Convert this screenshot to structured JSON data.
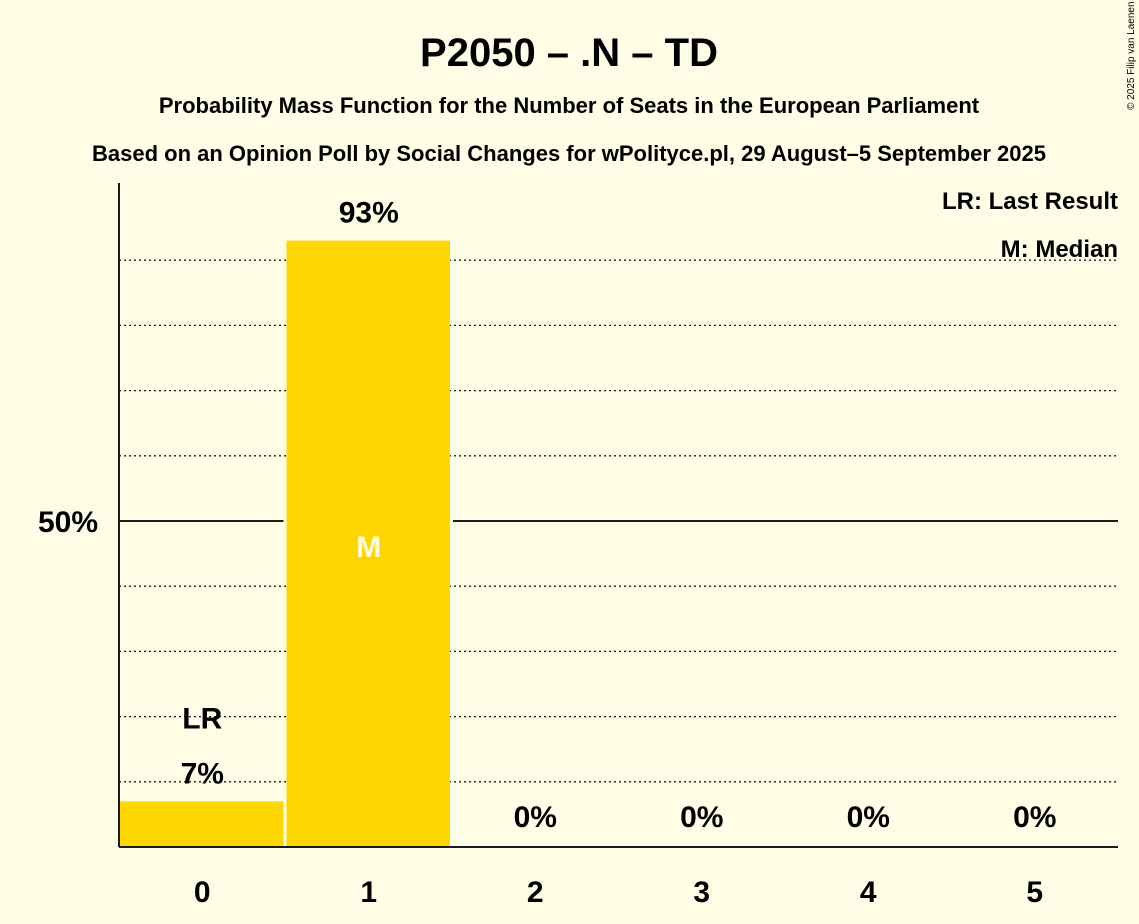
{
  "chart_data": {
    "type": "bar",
    "title": "P2050 – .N – TD",
    "subtitle1": "Probability Mass Function for the Number of Seats in the European Parliament",
    "subtitle2": "Based on an Opinion Poll by Social Changes for wPolityce.pl, 29 August–5 September 2025",
    "copyright": "© 2025 Filip van Laenen",
    "categories": [
      "0",
      "1",
      "2",
      "3",
      "4",
      "5"
    ],
    "values": [
      7,
      93,
      0,
      0,
      0,
      0
    ],
    "value_labels": [
      "7%",
      "93%",
      "0%",
      "0%",
      "0%",
      "0%"
    ],
    "ylim": [
      0,
      100
    ],
    "ytick_label": "50%",
    "ytick_value": 50,
    "grid": true,
    "last_result_index": 0,
    "last_result_label": "LR",
    "median_index": 1,
    "median_label": "M",
    "legend": [
      "LR: Last Result",
      "M: Median"
    ],
    "legend_position": "top-right",
    "colors": {
      "bar": "#ffd700",
      "background": "#fefde6",
      "median_text": "#fefde6"
    }
  }
}
